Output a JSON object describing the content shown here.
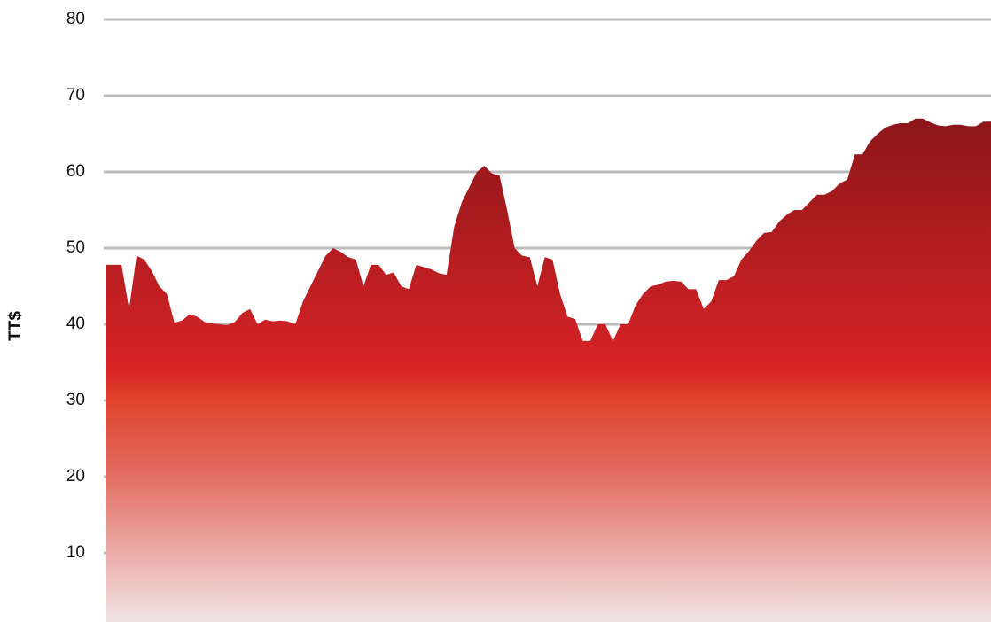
{
  "chart_data": {
    "type": "area",
    "y_label": "TT$",
    "values": [
      47.8,
      47.8,
      47.8,
      42,
      49,
      48.5,
      47,
      45,
      44,
      40.2,
      40.5,
      41.3,
      41,
      40.3,
      40.1,
      40,
      39.9,
      40.3,
      41.5,
      42,
      40,
      40.6,
      40.4,
      40.5,
      40.4,
      40,
      43,
      45,
      47,
      49,
      50,
      49.5,
      48.8,
      48.5,
      45,
      47.8,
      47.8,
      46.5,
      46.8,
      45,
      44.6,
      47.8,
      47.5,
      47.2,
      46.7,
      46.5,
      52.8,
      56,
      58,
      60,
      60.8,
      59.8,
      59.5,
      55,
      50,
      49,
      48.8,
      45,
      48.8,
      48.5,
      44,
      41,
      40.7,
      37.8,
      37.8,
      40,
      40,
      37.8,
      40,
      40,
      42.5,
      44,
      45,
      45.2,
      45.6,
      45.7,
      45.6,
      44.6,
      44.6,
      42,
      43,
      45.8,
      45.8,
      46.3,
      48.5,
      49.6,
      51,
      52,
      52.1,
      53.5,
      54.4,
      55,
      55,
      56,
      57,
      57,
      57.5,
      58.5,
      59,
      62.3,
      62.3,
      64,
      65,
      65.8,
      66.2,
      66.4,
      66.4,
      67,
      67,
      66.5,
      66.1,
      66,
      66.2,
      66.2,
      66,
      66,
      66.6,
      66.6
    ],
    "ylim": [
      0,
      80
    ],
    "yticks": [
      10,
      20,
      30,
      40,
      50,
      60,
      70,
      80
    ],
    "grid": true,
    "grid_color": "#bbbbbb"
  }
}
